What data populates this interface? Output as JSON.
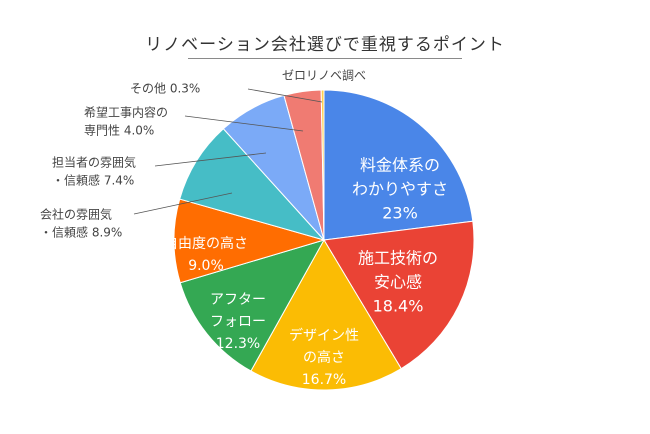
{
  "chart_data": {
    "type": "pie",
    "title": "リノベーション会社選びで重視するポイント",
    "source_note": "ゼロリノベ調べ",
    "slices": [
      {
        "label_lines": [
          "料金体系の",
          "わかりやすさ"
        ],
        "value": 23,
        "value_label": "23%",
        "color": "#4a86e8",
        "placement": "inside"
      },
      {
        "label_lines": [
          "施工技術の",
          "安心感"
        ],
        "value": 18.4,
        "value_label": "18.4%",
        "color": "#ea4335",
        "placement": "inside"
      },
      {
        "label_lines": [
          "デザイン性",
          "の高さ"
        ],
        "value": 16.7,
        "value_label": "16.7%",
        "color": "#fbbc04",
        "placement": "inside"
      },
      {
        "label_lines": [
          "アフター",
          "フォロー"
        ],
        "value": 12.3,
        "value_label": "12.3%",
        "color": "#34a853",
        "placement": "inside"
      },
      {
        "label_lines": [
          "自由度の高さ"
        ],
        "value": 9.0,
        "value_label": "9.0%",
        "color": "#ff6d01",
        "placement": "inside"
      },
      {
        "label_lines": [
          "会社の雰囲気",
          "・信頼感 8.9%"
        ],
        "value": 8.9,
        "value_label": "",
        "color": "#46bdc6",
        "placement": "outside"
      },
      {
        "label_lines": [
          "担当者の雰囲気",
          "・信頼感 7.4%"
        ],
        "value": 7.4,
        "value_label": "",
        "color": "#7baaf7",
        "placement": "outside"
      },
      {
        "label_lines": [
          "希望工事内容の",
          "専門性 4.0%"
        ],
        "value": 4.0,
        "value_label": "",
        "color": "#f07b72",
        "placement": "outside"
      },
      {
        "label_lines": [
          "その他 0.3%"
        ],
        "value": 0.3,
        "value_label": "",
        "color": "#fcd04f",
        "placement": "outside"
      }
    ]
  }
}
